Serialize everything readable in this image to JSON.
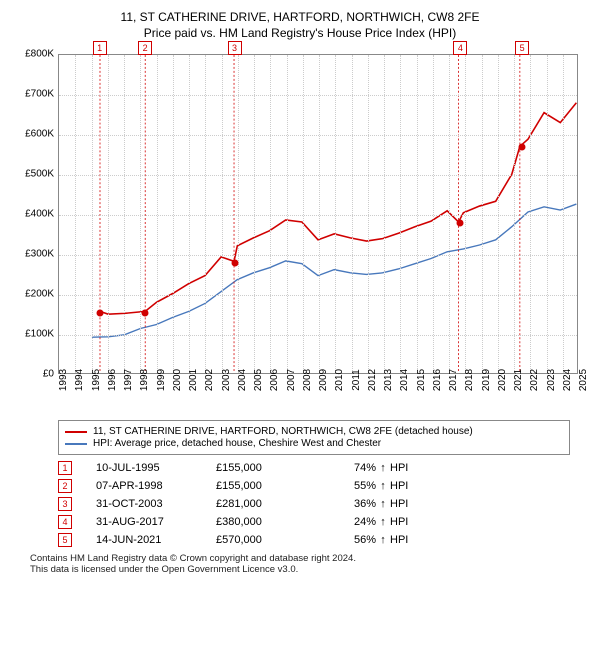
{
  "title_line1": "11, ST CATHERINE DRIVE, HARTFORD, NORTHWICH, CW8 2FE",
  "title_line2": "Price paid vs. HM Land Registry's House Price Index (HPI)",
  "chart": {
    "type": "line",
    "background_color": "#ffffff",
    "grid_color": "#cccccc",
    "border_color": "#888888",
    "x_min": 1993,
    "x_max": 2025,
    "y_min": 0,
    "y_max": 800000,
    "y_ticks": [
      0,
      100000,
      200000,
      300000,
      400000,
      500000,
      600000,
      700000,
      800000
    ],
    "y_tick_labels": [
      "£0",
      "£100K",
      "£200K",
      "£300K",
      "£400K",
      "£500K",
      "£600K",
      "£700K",
      "£800K"
    ],
    "x_ticks": [
      1993,
      1994,
      1995,
      1996,
      1997,
      1998,
      1999,
      2000,
      2001,
      2002,
      2003,
      2004,
      2005,
      2006,
      2007,
      2008,
      2009,
      2010,
      2011,
      2012,
      2013,
      2014,
      2015,
      2016,
      2017,
      2018,
      2019,
      2020,
      2021,
      2022,
      2023,
      2024,
      2025
    ],
    "series": [
      {
        "name": "property",
        "color": "#d00000",
        "width": 1.6,
        "points": [
          [
            1995.5,
            155000
          ],
          [
            1996,
            148000
          ],
          [
            1997,
            150000
          ],
          [
            1998.3,
            155000
          ],
          [
            1999,
            178000
          ],
          [
            2000,
            200000
          ],
          [
            2001,
            225000
          ],
          [
            2002,
            245000
          ],
          [
            2003,
            292000
          ],
          [
            2003.8,
            281000
          ],
          [
            2004,
            320000
          ],
          [
            2005,
            340000
          ],
          [
            2006,
            358000
          ],
          [
            2007,
            385000
          ],
          [
            2008,
            380000
          ],
          [
            2009,
            335000
          ],
          [
            2010,
            350000
          ],
          [
            2011,
            340000
          ],
          [
            2012,
            332000
          ],
          [
            2013,
            338000
          ],
          [
            2014,
            352000
          ],
          [
            2015,
            368000
          ],
          [
            2016,
            382000
          ],
          [
            2017,
            408000
          ],
          [
            2017.7,
            380000
          ],
          [
            2018,
            403000
          ],
          [
            2019,
            420000
          ],
          [
            2020,
            432000
          ],
          [
            2021,
            500000
          ],
          [
            2021.5,
            570000
          ],
          [
            2022,
            588000
          ],
          [
            2023,
            655000
          ],
          [
            2024,
            630000
          ],
          [
            2025,
            680000
          ]
        ]
      },
      {
        "name": "hpi",
        "color": "#4878bc",
        "width": 1.4,
        "points": [
          [
            1995,
            90000
          ],
          [
            1996,
            91000
          ],
          [
            1997,
            96000
          ],
          [
            1998,
            112000
          ],
          [
            1999,
            122000
          ],
          [
            2000,
            140000
          ],
          [
            2001,
            155000
          ],
          [
            2002,
            175000
          ],
          [
            2003,
            205000
          ],
          [
            2004,
            235000
          ],
          [
            2005,
            252000
          ],
          [
            2006,
            265000
          ],
          [
            2007,
            282000
          ],
          [
            2008,
            275000
          ],
          [
            2009,
            245000
          ],
          [
            2010,
            260000
          ],
          [
            2011,
            252000
          ],
          [
            2012,
            248000
          ],
          [
            2013,
            252000
          ],
          [
            2014,
            262000
          ],
          [
            2015,
            275000
          ],
          [
            2016,
            288000
          ],
          [
            2017,
            305000
          ],
          [
            2018,
            312000
          ],
          [
            2019,
            322000
          ],
          [
            2020,
            335000
          ],
          [
            2021,
            368000
          ],
          [
            2022,
            405000
          ],
          [
            2023,
            418000
          ],
          [
            2024,
            410000
          ],
          [
            2025,
            425000
          ]
        ]
      }
    ],
    "marker_box_top_y": -14,
    "sale_markers": [
      {
        "idx": "1",
        "x": 1995.5,
        "y": 155000
      },
      {
        "idx": "2",
        "x": 1998.3,
        "y": 155000
      },
      {
        "idx": "3",
        "x": 2003.8,
        "y": 281000
      },
      {
        "idx": "4",
        "x": 2017.7,
        "y": 380000
      },
      {
        "idx": "5",
        "x": 2021.5,
        "y": 570000
      }
    ],
    "marker_color": "#d00000",
    "label_fontsize": 10
  },
  "legend": {
    "items": [
      {
        "color": "#d00000",
        "label": "11, ST CATHERINE DRIVE, HARTFORD, NORTHWICH, CW8 2FE (detached house)"
      },
      {
        "color": "#4878bc",
        "label": "HPI: Average price, detached house, Cheshire West and Chester"
      }
    ]
  },
  "sales_table": {
    "arrow": "↑",
    "hpi_label": "HPI",
    "rows": [
      {
        "idx": "1",
        "date": "10-JUL-1995",
        "price": "£155,000",
        "pct": "74%"
      },
      {
        "idx": "2",
        "date": "07-APR-1998",
        "price": "£155,000",
        "pct": "55%"
      },
      {
        "idx": "3",
        "date": "31-OCT-2003",
        "price": "£281,000",
        "pct": "36%"
      },
      {
        "idx": "4",
        "date": "31-AUG-2017",
        "price": "£380,000",
        "pct": "24%"
      },
      {
        "idx": "5",
        "date": "14-JUN-2021",
        "price": "£570,000",
        "pct": "56%"
      }
    ]
  },
  "footnote_line1": "Contains HM Land Registry data © Crown copyright and database right 2024.",
  "footnote_line2": "This data is licensed under the Open Government Licence v3.0."
}
